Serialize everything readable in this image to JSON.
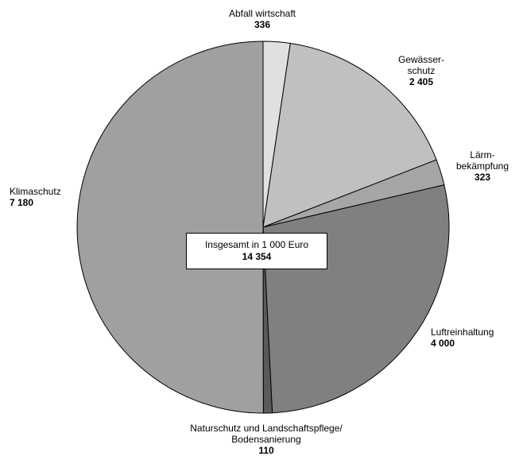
{
  "chart_data": {
    "type": "pie",
    "center_label": "Insgesamt in 1 000 Euro",
    "total": "14 354",
    "slices": [
      {
        "name_lines": [
          "Abfall wirtschaft"
        ],
        "value_label": "336",
        "value": 336,
        "color": "#e0e0e0"
      },
      {
        "name_lines": [
          "Gewässer-",
          "schutz"
        ],
        "value_label": "2 405",
        "value": 2405,
        "color": "#c0c0c0"
      },
      {
        "name_lines": [
          "Lärm-",
          "bekämpfung"
        ],
        "value_label": "323",
        "value": 323,
        "color": "#a6a6a6"
      },
      {
        "name_lines": [
          "Luftreinhaltung"
        ],
        "value_label": "4 000",
        "value": 4000,
        "color": "#808080"
      },
      {
        "name_lines": [
          "Naturschutz und Landschaftspflege/",
          "Bodensanierung"
        ],
        "value_label": "110",
        "value": 110,
        "color": "#5a5a5a"
      },
      {
        "name_lines": [
          "Klimaschutz"
        ],
        "value_label": "7 180",
        "value": 7180,
        "color": "#a0a0a0"
      }
    ]
  }
}
